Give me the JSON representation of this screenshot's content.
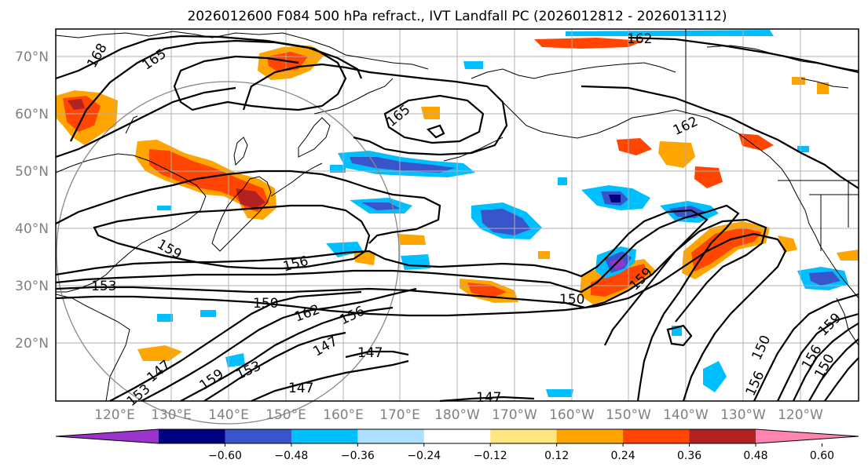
{
  "title": "2026012600 F084 500 hPa refract., IVT Landfall PC (2026012812 - 2026013112)",
  "map": {
    "lat_labels": [
      "70°N",
      "60°N",
      "50°N",
      "40°N",
      "30°N",
      "20°N"
    ],
    "lon_labels": [
      "120°E",
      "130°E",
      "140°E",
      "150°E",
      "160°E",
      "170°E",
      "180°W",
      "170°W",
      "160°W",
      "150°W",
      "140°W",
      "130°W",
      "120°W"
    ],
    "contour_labels": [
      {
        "id": "c1",
        "text": "168"
      },
      {
        "id": "c2",
        "text": "165"
      },
      {
        "id": "c3",
        "text": "162"
      },
      {
        "id": "c4",
        "text": "165"
      },
      {
        "id": "c5",
        "text": "162"
      },
      {
        "id": "c6",
        "text": "159"
      },
      {
        "id": "c7",
        "text": "156"
      },
      {
        "id": "c8",
        "text": "153"
      },
      {
        "id": "c9",
        "text": "150"
      },
      {
        "id": "c10",
        "text": "162"
      },
      {
        "id": "c11",
        "text": "156"
      },
      {
        "id": "c12",
        "text": "147"
      },
      {
        "id": "c13",
        "text": "147"
      },
      {
        "id": "c14",
        "text": "159"
      },
      {
        "id": "c15",
        "text": "153"
      },
      {
        "id": "c16",
        "text": "147"
      },
      {
        "id": "c17",
        "text": "147"
      },
      {
        "id": "c18",
        "text": "147"
      },
      {
        "id": "c19",
        "text": "159"
      },
      {
        "id": "c20",
        "text": "153"
      },
      {
        "id": "c21",
        "text": "150"
      },
      {
        "id": "c22",
        "text": "159"
      },
      {
        "id": "c23",
        "text": "156"
      },
      {
        "id": "c24",
        "text": "150"
      },
      {
        "id": "c25",
        "text": "156"
      },
      {
        "id": "c26",
        "text": "150"
      }
    ]
  },
  "colorbar": {
    "colors": [
      "#9933cc",
      "#000080",
      "#3a55cc",
      "#00bfff",
      "#addfff",
      "#ffffff",
      "#ffe680",
      "#ffa500",
      "#ff4500",
      "#b22222",
      "#ff85b0"
    ],
    "tick_labels": [
      "−0.60",
      "−0.48",
      "−0.36",
      "−0.24",
      "−0.12",
      "0.12",
      "0.24",
      "0.36",
      "0.48",
      "0.60"
    ]
  }
}
